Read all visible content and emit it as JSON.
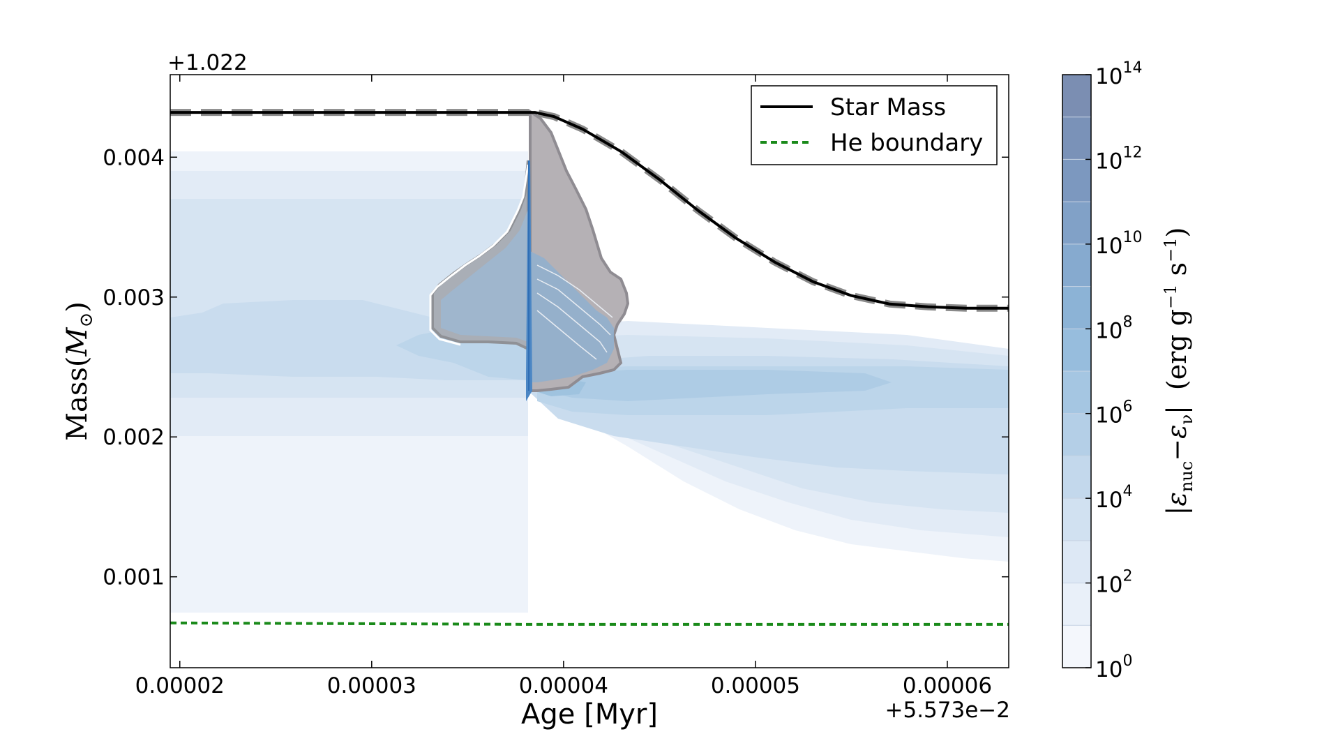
{
  "chart_data": {
    "type": "area",
    "title": "",
    "xlabel": "Age [Myr]",
    "ylabel": "Mass",
    "ylabel_symbol": "M",
    "ylabel_subscript": "⊙",
    "x_offset": "+5.573e−2",
    "y_offset": "+1.022",
    "xlim": [
      1.95e-05,
      6.32e-05
    ],
    "ylim": [
      0.00035,
      0.00459
    ],
    "x_ticks": [
      {
        "value": 2e-05,
        "label": "0.00002"
      },
      {
        "value": 3e-05,
        "label": "0.00003"
      },
      {
        "value": 4e-05,
        "label": "0.00004"
      },
      {
        "value": 5e-05,
        "label": "0.00005"
      },
      {
        "value": 6e-05,
        "label": "0.00006"
      }
    ],
    "y_ticks": [
      {
        "value": 0.001,
        "label": "0.001"
      },
      {
        "value": 0.002,
        "label": "0.002"
      },
      {
        "value": 0.003,
        "label": "0.003"
      },
      {
        "value": 0.004,
        "label": "0.004"
      }
    ],
    "legend": {
      "position": "top-right",
      "entries": [
        {
          "label": "Star Mass",
          "color": "#000000",
          "style": "solid"
        },
        {
          "label": "He boundary",
          "color": "#1a8a1a",
          "style": "dashed"
        }
      ]
    },
    "series": [
      {
        "name": "Star Mass",
        "color": "#000000",
        "x": [
          1.95e-05,
          3.85e-05,
          3.95e-05,
          4.1e-05,
          4.3e-05,
          4.5e-05,
          4.7e-05,
          4.9e-05,
          5.1e-05,
          5.3e-05,
          5.5e-05,
          5.7e-05,
          5.9e-05,
          6.1e-05,
          6.32e-05
        ],
        "y": [
          0.00432,
          0.00432,
          0.00429,
          0.0042,
          0.00404,
          0.00384,
          0.00362,
          0.00342,
          0.00325,
          0.00311,
          0.00301,
          0.00295,
          0.00293,
          0.00292,
          0.00292
        ]
      },
      {
        "name": "He boundary",
        "color": "#1a8a1a",
        "x": [
          1.95e-05,
          3.85e-05,
          6.32e-05
        ],
        "y": [
          0.00067,
          0.00066,
          0.00066
        ]
      }
    ],
    "colorbar": {
      "label": "|ε_nuc − ε_ν|   (erg g⁻¹ s⁻¹)",
      "label_parts": {
        "eps_nuc": "ε",
        "nuc_sub": "nuc",
        "minus": "−",
        "eps_nu": "ε",
        "nu_sub": "ν",
        "units_open": "(erg g",
        "units_g_exp": "−1",
        "units_s": " s",
        "units_s_exp": "−1",
        "units_close": ")"
      },
      "scale": "log",
      "range": [
        0,
        14
      ],
      "ticks": [
        {
          "base": "10",
          "exp": "0"
        },
        {
          "base": "10",
          "exp": "2"
        },
        {
          "base": "10",
          "exp": "4"
        },
        {
          "base": "10",
          "exp": "6"
        },
        {
          "base": "10",
          "exp": "8"
        },
        {
          "base": "10",
          "exp": "10"
        },
        {
          "base": "10",
          "exp": "12"
        },
        {
          "base": "10",
          "exp": "14"
        }
      ],
      "colors": [
        "#f4f7fc",
        "#e9f0f9",
        "#dde8f5",
        "#d1e1f1",
        "#c3d8ec",
        "#b4cfe7",
        "#a5c6e2",
        "#97bddd",
        "#8cb3d6",
        "#86aacf",
        "#81a1c7",
        "#7c98bf",
        "#7a92b8",
        "#7b8eb2"
      ]
    }
  }
}
